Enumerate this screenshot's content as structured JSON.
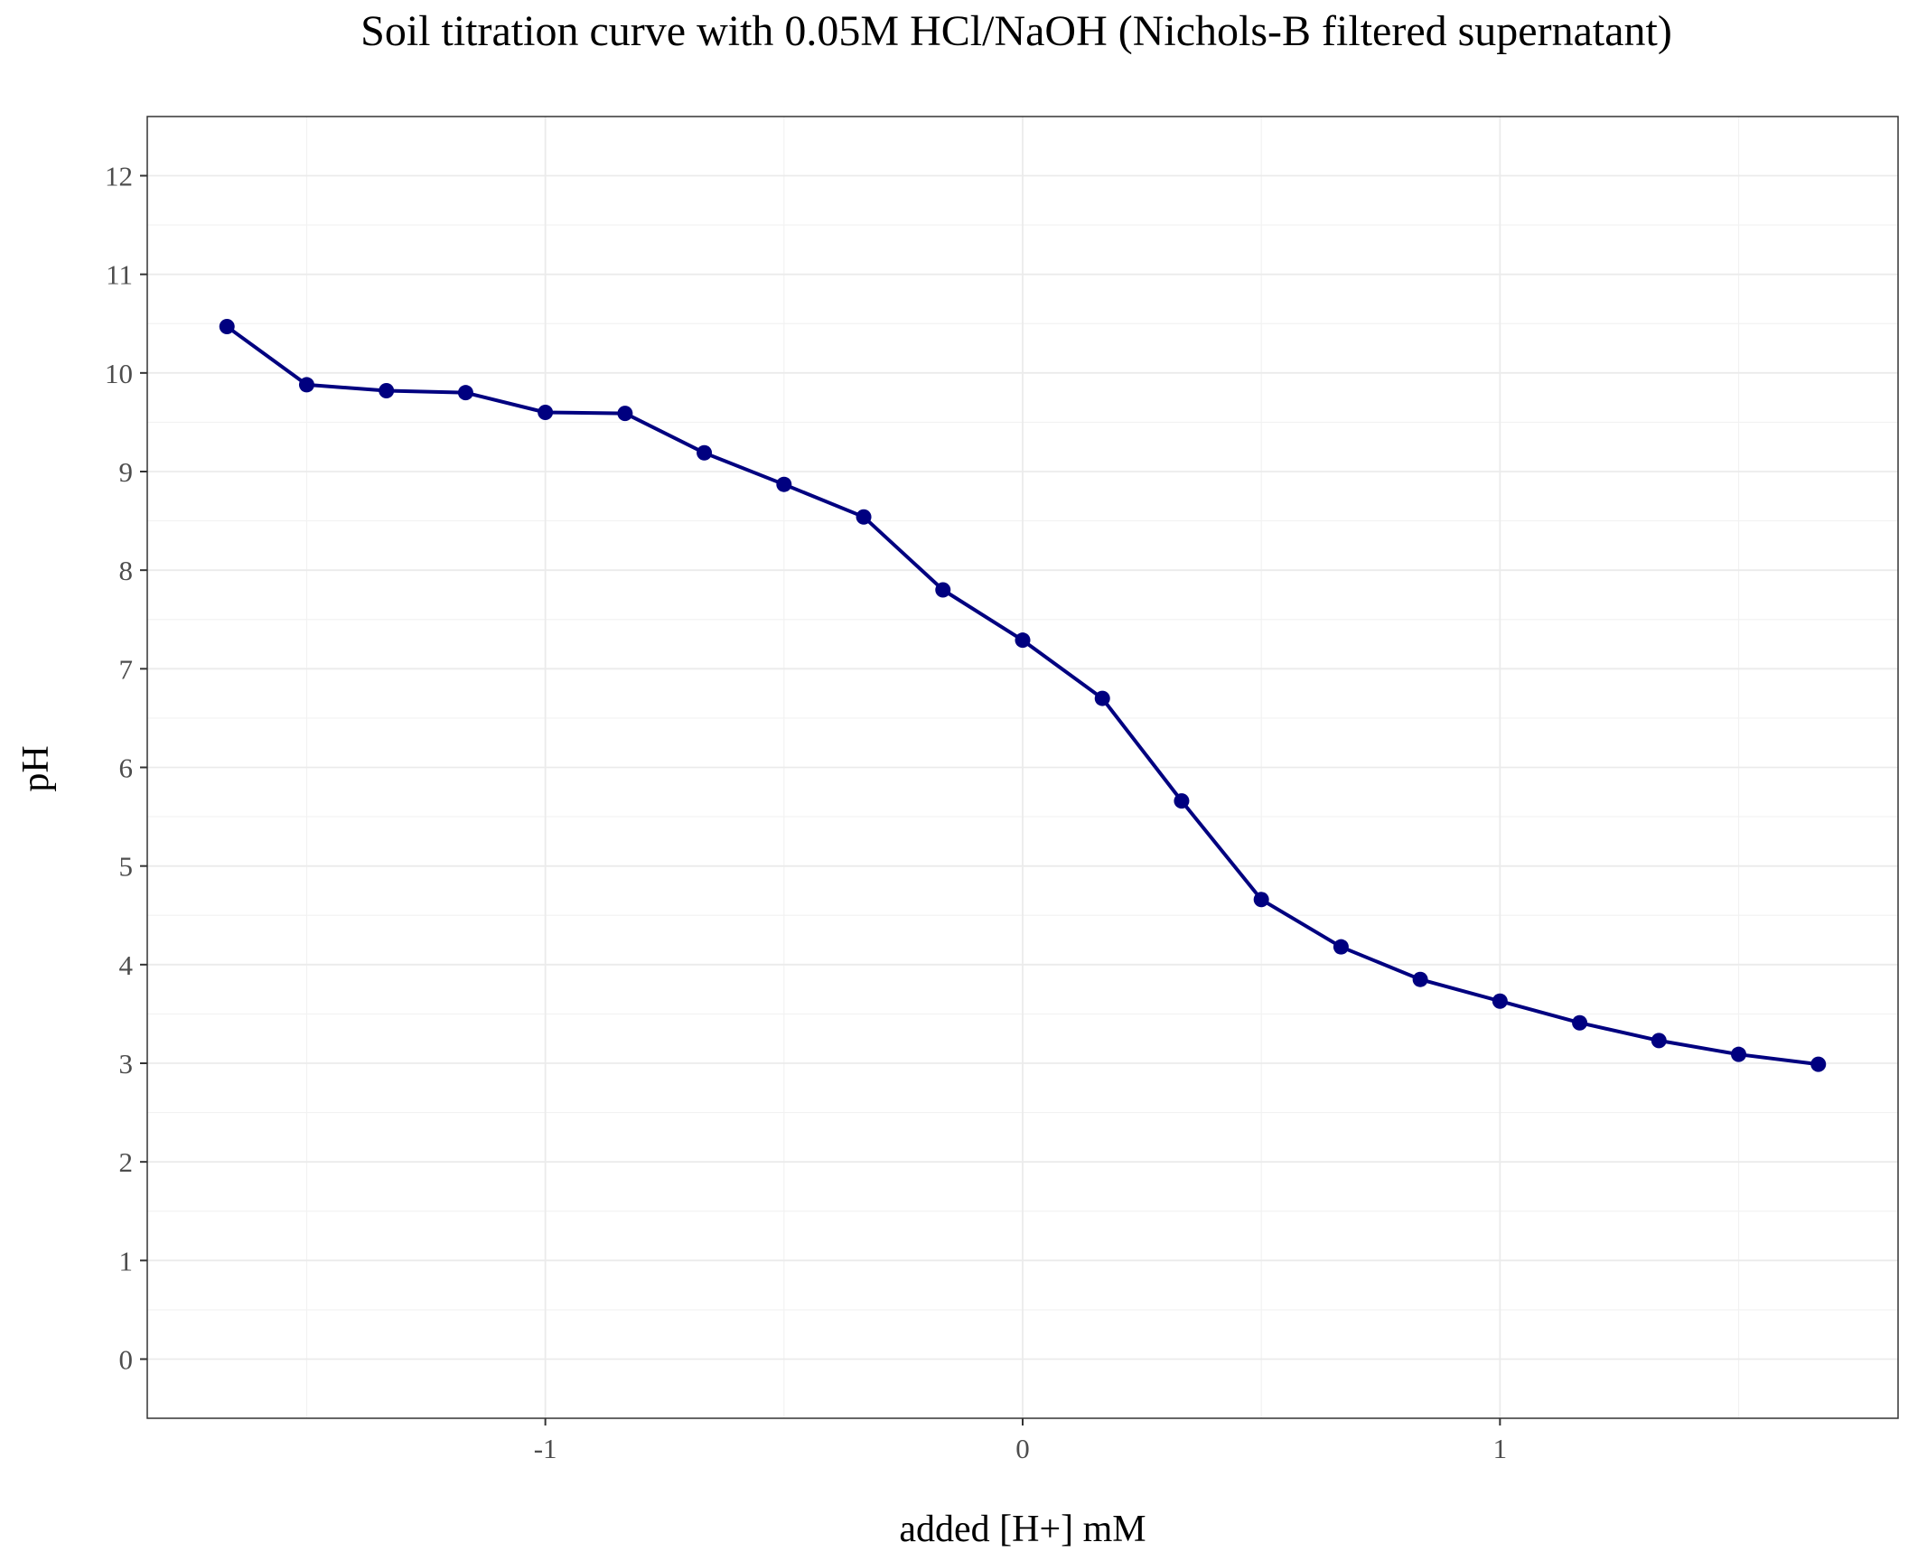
{
  "chart_data": {
    "type": "line",
    "title": "Soil titration curve with 0.05M HCl/NaOH (Nichols-B filtered supernatant)",
    "xlabel": "added [H+] mM",
    "ylabel": "pH",
    "xlim": [
      -1.834,
      1.834
    ],
    "ylim": [
      -0.6,
      12.6
    ],
    "x_ticks": [
      -1,
      0,
      1
    ],
    "x_tick_labels": [
      "-1",
      "0",
      "1"
    ],
    "y_ticks": [
      0,
      1,
      2,
      3,
      4,
      5,
      6,
      7,
      8,
      9,
      10,
      11,
      12
    ],
    "y_tick_labels": [
      "0",
      "1",
      "2",
      "3",
      "4",
      "5",
      "6",
      "7",
      "8",
      "9",
      "10",
      "11",
      "12"
    ],
    "grid": true,
    "legend": "none",
    "series": [
      {
        "color": "#000080",
        "x": [
          -1.667,
          -1.5,
          -1.333,
          -1.167,
          -1.0,
          -0.833,
          -0.667,
          -0.5,
          -0.333,
          -0.167,
          0.0,
          0.167,
          0.333,
          0.5,
          0.667,
          0.833,
          1.0,
          1.167,
          1.333,
          1.5,
          1.667
        ],
        "y": [
          10.47,
          9.88,
          9.82,
          9.8,
          9.6,
          9.59,
          9.19,
          8.87,
          8.54,
          7.8,
          7.29,
          6.7,
          5.66,
          4.66,
          4.18,
          3.85,
          3.63,
          3.41,
          3.23,
          3.09,
          2.99
        ]
      }
    ]
  }
}
